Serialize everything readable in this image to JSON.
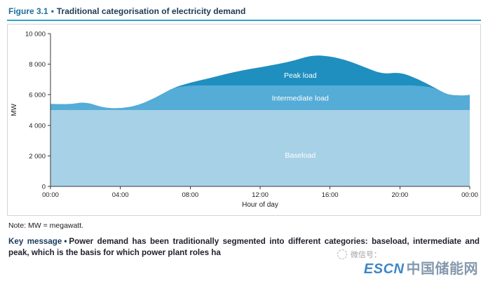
{
  "header": {
    "figure_label": "Figure 3.1",
    "separator": "•",
    "title": "Traditional categorisation of electricity demand"
  },
  "chart_data": {
    "type": "area",
    "xlabel": "Hour of day",
    "ylabel": "MW",
    "ylim": [
      0,
      10000
    ],
    "xlim_hours": [
      0,
      24
    ],
    "grid": false,
    "legend": "labels-inside-areas",
    "x_hours": [
      0,
      1,
      2,
      3,
      4,
      5,
      6,
      7,
      8,
      9,
      10,
      11,
      12,
      13,
      14,
      15,
      16,
      17,
      18,
      19,
      20,
      21,
      22,
      23,
      24
    ],
    "total_demand_mw": [
      5400,
      5350,
      5550,
      5150,
      5100,
      5300,
      5800,
      6450,
      6800,
      7050,
      7350,
      7600,
      7800,
      8000,
      8250,
      8600,
      8520,
      8250,
      7800,
      7350,
      7480,
      7050,
      6450,
      5850,
      6000
    ],
    "baseload_level_mw": 5000,
    "intermediate_level_mw": 6600,
    "bands": [
      {
        "name": "Baseload",
        "color": "#a7d1e7",
        "label_hour": 14.3,
        "label_mw": 2050
      },
      {
        "name": "Intermediate load",
        "color": "#54acd7",
        "label_hour": 14.3,
        "label_mw": 5780
      },
      {
        "name": "Peak load",
        "color": "#1f8fc0",
        "label_hour": 14.3,
        "label_mw": 7280
      }
    ],
    "yticks": [
      {
        "value": 0,
        "label": "0"
      },
      {
        "value": 2000,
        "label": "2 000"
      },
      {
        "value": 4000,
        "label": "4 000"
      },
      {
        "value": 6000,
        "label": "6 000"
      },
      {
        "value": 8000,
        "label": "8 000"
      },
      {
        "value": 10000,
        "label": "10 000"
      }
    ],
    "xticks": [
      {
        "value": 0,
        "label": "00:00"
      },
      {
        "value": 4,
        "label": "04:00"
      },
      {
        "value": 8,
        "label": "08:00"
      },
      {
        "value": 12,
        "label": "12:00"
      },
      {
        "value": 16,
        "label": "16:00"
      },
      {
        "value": 20,
        "label": "20:00"
      },
      {
        "value": 24,
        "label": "00:00"
      }
    ]
  },
  "note": {
    "text": "Note: MW = megawatt."
  },
  "key_message": {
    "label": "Key message",
    "separator": "•",
    "text": "Power demand has been traditionally segmented into different categories: baseload, intermediate and peak, which is the basis for which power plant roles ha"
  },
  "watermark": {
    "wechat_label": "微信号：",
    "brand_en": "ESCN",
    "brand_cn": "中国储能网"
  },
  "colors": {
    "accent_rule": "#2fa3c9",
    "axis": "#3a3a3a",
    "baseload": "#a7d1e7",
    "intermediate": "#54acd7",
    "peak": "#1f8fc0"
  }
}
